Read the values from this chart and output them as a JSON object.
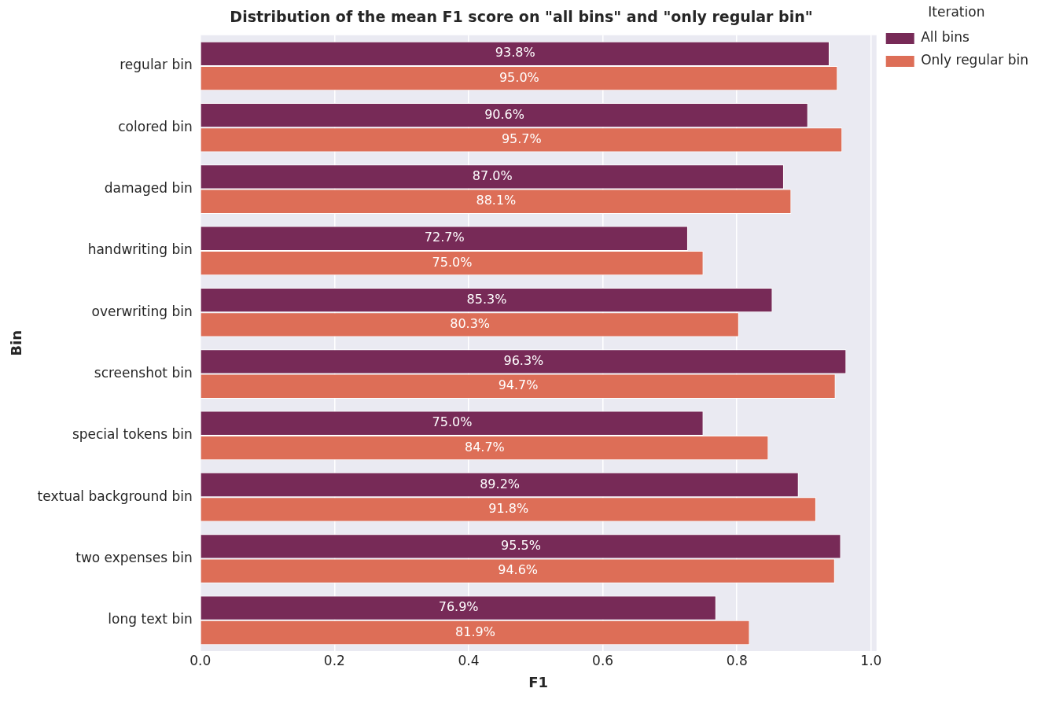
{
  "chart_data": {
    "type": "bar",
    "orientation": "horizontal",
    "title": "Distribution of the mean F1 score on \"all bins\" and \"only regular bin\"",
    "xlabel": "F1",
    "ylabel": "Bin",
    "legend_title": "Iteration",
    "categories": [
      "regular bin",
      "colored bin",
      "damaged bin",
      "handwriting bin",
      "overwriting bin",
      "screenshot bin",
      "special tokens bin",
      "textual background bin",
      "two expenses bin",
      "long text bin"
    ],
    "series": [
      {
        "name": "All bins",
        "color": "#772a57",
        "values": [
          0.938,
          0.906,
          0.87,
          0.727,
          0.853,
          0.963,
          0.75,
          0.892,
          0.955,
          0.769
        ],
        "value_labels": [
          "93.8%",
          "90.6%",
          "87.0%",
          "72.7%",
          "85.3%",
          "96.3%",
          "75.0%",
          "89.2%",
          "95.5%",
          "76.9%"
        ]
      },
      {
        "name": "Only regular bin",
        "color": "#dd6e57",
        "values": [
          0.95,
          0.957,
          0.881,
          0.75,
          0.803,
          0.947,
          0.847,
          0.918,
          0.946,
          0.819
        ],
        "value_labels": [
          "95.0%",
          "95.7%",
          "88.1%",
          "75.0%",
          "80.3%",
          "94.7%",
          "84.7%",
          "91.8%",
          "94.6%",
          "81.9%"
        ]
      }
    ],
    "xlim": [
      0,
      1.008
    ],
    "xticks": [
      {
        "value": 0,
        "label": "0.0"
      },
      {
        "value": 0.2,
        "label": "0.2"
      },
      {
        "value": 0.4,
        "label": "0.4"
      },
      {
        "value": 0.6,
        "label": "0.6"
      },
      {
        "value": 0.8,
        "label": "0.8"
      },
      {
        "value": 1.0,
        "label": "1.0"
      }
    ],
    "grid": "x",
    "legend": "top right"
  }
}
